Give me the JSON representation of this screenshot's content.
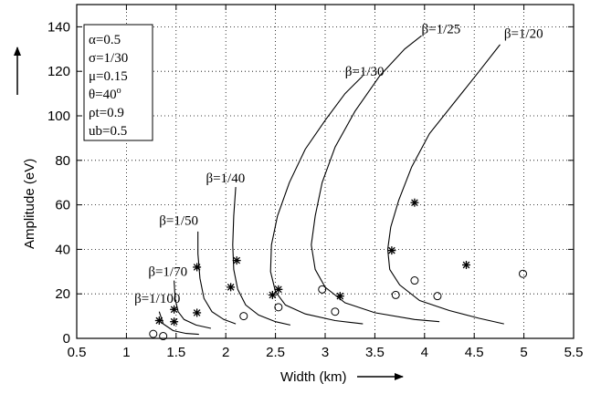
{
  "chart_data": {
    "type": "scatter",
    "xlabel": "Width (km)",
    "ylabel": "Amplitude (eV)",
    "xlim": [
      0.5,
      5.5
    ],
    "ylim": [
      0,
      150
    ],
    "xticks": [
      "0.5",
      "1",
      "1.5",
      "2",
      "2.5",
      "3",
      "3.5",
      "4",
      "4.5",
      "5",
      "5.5"
    ],
    "yticks": [
      "0",
      "20",
      "40",
      "60",
      "80",
      "100",
      "120",
      "140"
    ],
    "grid": true,
    "parameters": [
      "α=0.5",
      "σ=1/30",
      "μ=0.15",
      "θ=40",
      "ρt=0.9",
      "ub=0.5"
    ],
    "theta_superscript": "o",
    "rho_subscript": "t",
    "u_subscript": "b",
    "curves": [
      {
        "label": "β=1/100",
        "label_at": [
          1.08,
          16
        ],
        "points": [
          [
            1.33,
            12
          ],
          [
            1.37,
            6.5
          ],
          [
            1.47,
            3.5
          ],
          [
            1.6,
            2.2
          ],
          [
            1.73,
            1.8
          ]
        ]
      },
      {
        "label": "β=1/70",
        "label_at": [
          1.22,
          28
        ],
        "points": [
          [
            1.48,
            26
          ],
          [
            1.49,
            18
          ],
          [
            1.52,
            12
          ],
          [
            1.58,
            8.5
          ],
          [
            1.7,
            6
          ],
          [
            1.85,
            4.5
          ]
        ]
      },
      {
        "label": "β=1/50",
        "label_at": [
          1.33,
          51
        ],
        "points": [
          [
            1.72,
            48
          ],
          [
            1.72,
            38
          ],
          [
            1.74,
            27
          ],
          [
            1.78,
            18
          ],
          [
            1.86,
            12
          ],
          [
            1.98,
            8.5
          ],
          [
            2.1,
            6.5
          ]
        ]
      },
      {
        "label": "β=1/40",
        "label_at": [
          1.8,
          70
        ],
        "points": [
          [
            2.1,
            68
          ],
          [
            2.08,
            55
          ],
          [
            2.07,
            42
          ],
          [
            2.08,
            31
          ],
          [
            2.12,
            22
          ],
          [
            2.2,
            15
          ],
          [
            2.33,
            10.5
          ],
          [
            2.5,
            7.5
          ],
          [
            2.65,
            6
          ]
        ]
      },
      {
        "label": "β=1/30",
        "label_at": [
          3.2,
          118
        ],
        "points": [
          [
            3.38,
            118
          ],
          [
            3.2,
            110
          ],
          [
            3.0,
            98
          ],
          [
            2.8,
            85
          ],
          [
            2.64,
            70
          ],
          [
            2.52,
            55
          ],
          [
            2.46,
            42
          ],
          [
            2.45,
            30
          ],
          [
            2.5,
            21
          ],
          [
            2.6,
            15
          ],
          [
            2.8,
            11
          ],
          [
            3.1,
            8
          ],
          [
            3.38,
            6.5
          ]
        ]
      },
      {
        "label": "β=1/25",
        "label_at": [
          3.97,
          137
        ],
        "points": [
          [
            3.97,
            136
          ],
          [
            3.8,
            130
          ],
          [
            3.55,
            118
          ],
          [
            3.3,
            102
          ],
          [
            3.1,
            86
          ],
          [
            2.97,
            70
          ],
          [
            2.9,
            55
          ],
          [
            2.86,
            42
          ],
          [
            2.9,
            31
          ],
          [
            3.0,
            23
          ],
          [
            3.2,
            16
          ],
          [
            3.5,
            11.5
          ],
          [
            3.9,
            8.5
          ],
          [
            4.15,
            7.5
          ]
        ]
      },
      {
        "label": "β=1/20",
        "label_at": [
          4.8,
          135
        ],
        "points": [
          [
            4.76,
            132
          ],
          [
            4.55,
            120
          ],
          [
            4.3,
            106
          ],
          [
            4.05,
            92
          ],
          [
            3.87,
            77
          ],
          [
            3.74,
            62
          ],
          [
            3.66,
            50
          ],
          [
            3.63,
            40
          ],
          [
            3.65,
            31
          ],
          [
            3.75,
            24
          ],
          [
            3.95,
            17
          ],
          [
            4.25,
            12.5
          ],
          [
            4.55,
            9
          ],
          [
            4.8,
            6.5
          ]
        ]
      }
    ],
    "series": [
      {
        "marker": "asterisk",
        "points": [
          [
            1.33,
            8
          ],
          [
            1.48,
            7.5
          ],
          [
            1.48,
            13
          ],
          [
            1.71,
            11.5
          ],
          [
            1.71,
            32
          ],
          [
            2.05,
            23
          ],
          [
            2.11,
            35
          ],
          [
            2.47,
            19.5
          ],
          [
            2.53,
            22
          ],
          [
            3.15,
            19
          ],
          [
            3.67,
            39.5
          ],
          [
            3.9,
            61
          ],
          [
            4.42,
            33
          ]
        ]
      },
      {
        "marker": "circle",
        "points": [
          [
            1.27,
            2
          ],
          [
            1.37,
            1
          ],
          [
            2.18,
            10
          ],
          [
            2.53,
            14
          ],
          [
            2.97,
            22
          ],
          [
            3.1,
            12
          ],
          [
            3.71,
            19.5
          ],
          [
            3.9,
            26
          ],
          [
            4.13,
            19
          ],
          [
            4.99,
            29
          ]
        ]
      }
    ]
  }
}
